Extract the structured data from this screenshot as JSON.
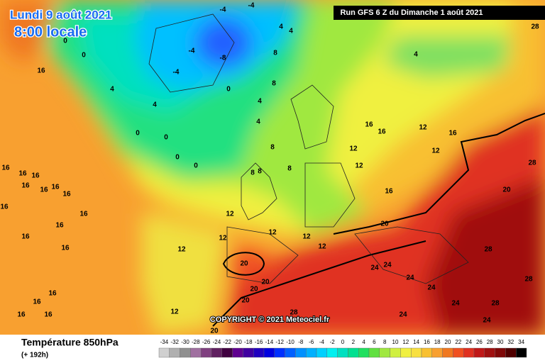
{
  "header": {
    "date": "Lundi 9 août 2021",
    "time": "8:00 locale"
  },
  "run": "Run GFS 6 Z du Dimanche 1 août 2021",
  "copyright": "COPYRIGHT © 2021 Meteociel.fr",
  "legend": {
    "title": "Température 850hPa",
    "subtitle": "(+ 192h)",
    "scale": [
      -34,
      -32,
      -30,
      -28,
      -26,
      -24,
      -22,
      -20,
      -18,
      -16,
      -14,
      -12,
      -10,
      -8,
      -6,
      -4,
      -2,
      0,
      2,
      4,
      6,
      8,
      10,
      12,
      14,
      16,
      18,
      20,
      22,
      24,
      26,
      28,
      30,
      32,
      34
    ],
    "colors": [
      "#d0d0d0",
      "#b0b0b0",
      "#909090",
      "#a070a0",
      "#804080",
      "#602060",
      "#400040",
      "#600090",
      "#4000a0",
      "#2000c0",
      "#0000e0",
      "#0030ff",
      "#0060ff",
      "#0090ff",
      "#00b0ff",
      "#00d0ff",
      "#00f0f0",
      "#00e0c0",
      "#00e090",
      "#20e060",
      "#60e040",
      "#a0e840",
      "#d0f040",
      "#f0f040",
      "#f8e040",
      "#f8c030",
      "#f8a030",
      "#f07820",
      "#f05020",
      "#e03020",
      "#c01818",
      "#a01010",
      "#800808",
      "#500000",
      "#000000"
    ]
  },
  "map_labels": [
    16,
    16,
    16,
    16,
    16,
    16,
    16,
    16,
    16,
    16,
    16,
    16,
    16,
    16,
    16,
    16,
    16,
    12,
    12,
    12,
    12,
    12,
    12,
    12,
    12,
    12,
    12,
    12,
    16,
    16,
    16,
    16,
    20,
    20,
    20,
    20,
    20,
    20,
    20,
    24,
    24,
    24,
    24,
    24,
    24,
    24,
    28,
    28,
    28,
    28,
    28,
    28,
    8,
    8,
    8,
    8,
    8,
    8,
    4,
    4,
    4,
    4,
    4,
    4,
    4,
    -4,
    -4,
    -4,
    -4,
    -8,
    0,
    0,
    0,
    0,
    0,
    0,
    0
  ]
}
